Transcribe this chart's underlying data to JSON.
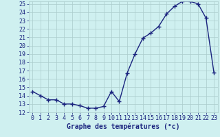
{
  "hours": [
    0,
    1,
    2,
    3,
    4,
    5,
    6,
    7,
    8,
    9,
    10,
    11,
    12,
    13,
    14,
    15,
    16,
    17,
    18,
    19,
    20,
    21,
    22,
    23
  ],
  "temperatures": [
    14.5,
    14.0,
    13.5,
    13.5,
    13.0,
    13.0,
    12.8,
    12.5,
    12.5,
    12.7,
    14.5,
    13.3,
    16.7,
    19.0,
    20.9,
    21.5,
    22.3,
    23.8,
    24.7,
    25.3,
    25.3,
    25.0,
    23.3,
    16.8
  ],
  "line_color": "#1a237e",
  "marker": "+",
  "marker_size": 4,
  "marker_linewidth": 1.0,
  "bg_color": "#cff0f0",
  "grid_color": "#aacccc",
  "xlabel": "Graphe des températures (°c)",
  "xlabel_color": "#1a237e",
  "xlabel_fontsize": 7,
  "tick_label_color": "#1a237e",
  "tick_fontsize": 6,
  "line_width": 1.0,
  "ylim_min": 12,
  "ylim_max": 25,
  "xlim_min": -0.5,
  "xlim_max": 23.5
}
